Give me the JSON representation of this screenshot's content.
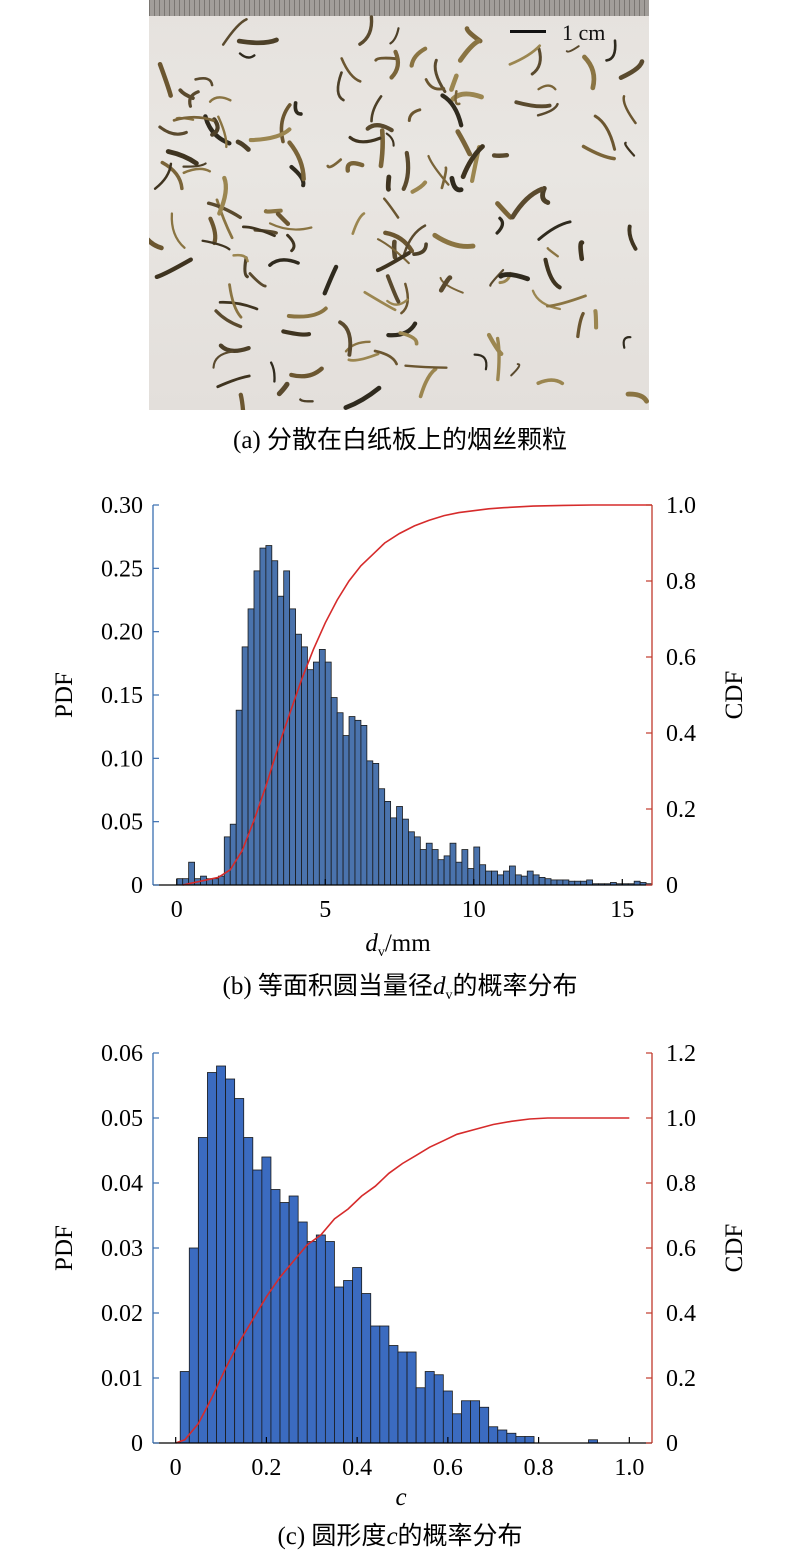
{
  "panel_a": {
    "scale_label": "1 cm",
    "caption": "(a) 分散在白纸板上的烟丝颗粒"
  },
  "panel_b": {
    "caption_pre": "(b) 等面积圆当量径",
    "caption_var": "d",
    "caption_sub": "v",
    "caption_post": "的概率分布"
  },
  "panel_c": {
    "caption_pre": "(c) 圆形度",
    "caption_var": "c",
    "caption_post": "的概率分布"
  },
  "colors": {
    "bar_b": "#4a73ad",
    "bar_c": "#3b6bc0",
    "cdf": "#d62b2b",
    "left_axis_b": "#3a6fb0",
    "right_axis": "#c0392b"
  },
  "chart_data": [
    {
      "type": "bar",
      "id": "dv-distribution",
      "xlabel": "d",
      "xlabel_sub": "v",
      "xlabel_unit": "/mm",
      "ylabel": "PDF",
      "y2label": "CDF",
      "xlim": [
        -0.8,
        16
      ],
      "ylim": [
        0,
        0.3
      ],
      "y2lim": [
        0,
        1.0
      ],
      "xticks": [
        0,
        5,
        10,
        15
      ],
      "xtick_labels": [
        "0",
        "5",
        "10",
        "15"
      ],
      "yticks": [
        0,
        0.05,
        0.1,
        0.15,
        0.2,
        0.25,
        0.3
      ],
      "ytick_labels": [
        "0",
        "0.05",
        "0.10",
        "0.15",
        "0.20",
        "0.25",
        "0.30"
      ],
      "y2ticks": [
        0,
        0.2,
        0.4,
        0.6,
        0.8,
        1.0
      ],
      "y2tick_labels": [
        "0",
        "0.2",
        "0.4",
        "0.6",
        "0.8",
        "1.0"
      ],
      "bin_start": 0.1,
      "bin_width": 0.2,
      "values": [
        0.005,
        0.005,
        0.018,
        0.005,
        0.007,
        0.005,
        0.005,
        0.007,
        0.038,
        0.048,
        0.138,
        0.188,
        0.218,
        0.248,
        0.266,
        0.268,
        0.256,
        0.228,
        0.248,
        0.218,
        0.198,
        0.188,
        0.17,
        0.176,
        0.186,
        0.176,
        0.148,
        0.136,
        0.118,
        0.133,
        0.13,
        0.126,
        0.098,
        0.096,
        0.076,
        0.066,
        0.053,
        0.062,
        0.052,
        0.042,
        0.038,
        0.028,
        0.033,
        0.028,
        0.02,
        0.023,
        0.033,
        0.018,
        0.028,
        0.013,
        0.03,
        0.016,
        0.011,
        0.011,
        0.008,
        0.011,
        0.015,
        0.008,
        0.007,
        0.011,
        0.008,
        0.006,
        0.005,
        0.004,
        0.004,
        0.004,
        0.003,
        0.003,
        0.003,
        0.004,
        0.001,
        0.001,
        0.001,
        0.002,
        0.001,
        0.001,
        0.001,
        0.003,
        0.002,
        0.001
      ],
      "cdf_x": [
        0.2,
        0.8,
        1.4,
        1.8,
        2.2,
        2.6,
        3.0,
        3.4,
        3.8,
        4.2,
        4.6,
        5.0,
        5.4,
        5.8,
        6.2,
        6.6,
        7.0,
        7.5,
        8.0,
        8.5,
        9.0,
        9.5,
        10.0,
        10.5,
        11.0,
        12.0,
        13.0,
        14.0,
        16.0
      ],
      "cdf_y": [
        0.0,
        0.01,
        0.02,
        0.04,
        0.09,
        0.17,
        0.26,
        0.36,
        0.45,
        0.54,
        0.62,
        0.69,
        0.75,
        0.8,
        0.84,
        0.87,
        0.9,
        0.925,
        0.945,
        0.96,
        0.972,
        0.98,
        0.985,
        0.99,
        0.993,
        0.997,
        0.999,
        1.0,
        1.0
      ]
    },
    {
      "type": "bar",
      "id": "c-distribution",
      "xlabel": "c",
      "ylabel": "PDF",
      "y2label": "CDF",
      "xlim": [
        -0.05,
        1.05
      ],
      "ylim": [
        0,
        0.06
      ],
      "y2lim": [
        0,
        1.2
      ],
      "xticks": [
        0,
        0.2,
        0.4,
        0.6,
        0.8,
        1.0
      ],
      "xtick_labels": [
        "0",
        "0.2",
        "0.4",
        "0.6",
        "0.8",
        "1.0"
      ],
      "yticks": [
        0,
        0.01,
        0.02,
        0.03,
        0.04,
        0.05,
        0.06
      ],
      "ytick_labels": [
        "0",
        "0.01",
        "0.02",
        "0.03",
        "0.04",
        "0.05",
        "0.06"
      ],
      "y2ticks": [
        0,
        0.2,
        0.4,
        0.6,
        0.8,
        1.0,
        1.2
      ],
      "y2tick_labels": [
        "0",
        "0.2",
        "0.4",
        "0.6",
        "0.8",
        "1.0",
        "1.2"
      ],
      "bin_start": 0.02,
      "bin_width": 0.02,
      "values": [
        0.011,
        0.03,
        0.047,
        0.057,
        0.058,
        0.056,
        0.053,
        0.047,
        0.042,
        0.044,
        0.039,
        0.037,
        0.038,
        0.034,
        0.031,
        0.032,
        0.031,
        0.024,
        0.025,
        0.027,
        0.023,
        0.018,
        0.018,
        0.015,
        0.014,
        0.014,
        0.0085,
        0.011,
        0.0105,
        0.008,
        0.0045,
        0.0065,
        0.0065,
        0.0055,
        0.0025,
        0.002,
        0.0015,
        0.001,
        0.001,
        0,
        0,
        0,
        0,
        0,
        0,
        0.0005,
        0,
        0
      ],
      "cdf_x": [
        0.0,
        0.02,
        0.05,
        0.08,
        0.11,
        0.14,
        0.17,
        0.2,
        0.23,
        0.26,
        0.29,
        0.32,
        0.35,
        0.38,
        0.41,
        0.44,
        0.47,
        0.5,
        0.53,
        0.56,
        0.59,
        0.62,
        0.66,
        0.7,
        0.74,
        0.78,
        0.82,
        1.0
      ],
      "cdf_y": [
        0.0,
        0.01,
        0.06,
        0.14,
        0.23,
        0.31,
        0.38,
        0.45,
        0.51,
        0.56,
        0.61,
        0.64,
        0.69,
        0.72,
        0.76,
        0.79,
        0.83,
        0.86,
        0.885,
        0.91,
        0.93,
        0.95,
        0.965,
        0.98,
        0.99,
        0.997,
        1.0,
        1.0
      ]
    }
  ]
}
